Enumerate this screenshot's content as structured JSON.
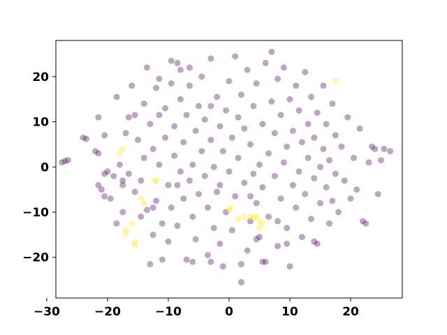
{
  "chart_data": {
    "type": "scatter",
    "title": "",
    "xlabel": "",
    "ylabel": "",
    "xlim": [
      -28.5,
      28.5
    ],
    "ylim": [
      -29,
      28
    ],
    "xticks": [
      -30,
      -20,
      -10,
      0,
      10,
      20
    ],
    "yticks": [
      -20,
      -10,
      0,
      10,
      20
    ],
    "xtick_labels": [
      "−30",
      "−20",
      "−10",
      "0",
      "10",
      "20"
    ],
    "ytick_labels": [
      "−20",
      "−10",
      "0",
      "10",
      "20"
    ],
    "grid": false,
    "legend": "none",
    "colors": {
      "class0": "#440154",
      "class1": "#fde725"
    },
    "marker_alpha": 0.35,
    "series": [
      {
        "points": [
          [
            -27.5,
            1.0
          ],
          [
            -27.0,
            1.3
          ],
          [
            -26.5,
            1.5
          ],
          [
            -24.0,
            6.5
          ],
          [
            -23.5,
            6.2
          ],
          [
            -22.0,
            3.5
          ],
          [
            -21.5,
            3.0
          ],
          [
            -21.5,
            11.0
          ],
          [
            -20.5,
            7.0
          ],
          [
            -21.5,
            -4.0
          ],
          [
            -21.0,
            -5.0
          ],
          [
            -20.5,
            -6.5
          ],
          [
            -20.5,
            -1.5
          ],
          [
            -20.0,
            -1.0
          ],
          [
            -19.5,
            -7.0
          ],
          [
            -18.5,
            -12.5
          ],
          [
            -18.5,
            15.5
          ],
          [
            -18.0,
            0.5
          ],
          [
            -17.5,
            -10.0
          ],
          [
            -17.5,
            -4.0
          ],
          [
            -17.0,
            7.5
          ],
          [
            -16.5,
            11.0
          ],
          [
            -16.5,
            -1.5
          ],
          [
            -16.0,
            18.0
          ],
          [
            -15.5,
            11.5
          ],
          [
            -15.5,
            -5.5
          ],
          [
            -15.0,
            6.0
          ],
          [
            -14.5,
            -11.0
          ],
          [
            -14.5,
            -3.0
          ],
          [
            -14.0,
            14.0
          ],
          [
            -14.0,
            2.0
          ],
          [
            -13.5,
            22.0
          ],
          [
            -13.5,
            -9.5
          ],
          [
            -13.0,
            9.5
          ],
          [
            -13.0,
            -21.5
          ],
          [
            -12.5,
            -15.0
          ],
          [
            -12.5,
            4.0
          ],
          [
            -12.0,
            17.5
          ],
          [
            -12.0,
            -7.5
          ],
          [
            -11.5,
            11.5
          ],
          [
            -11.5,
            0.5
          ],
          [
            -11.0,
            -12.5
          ],
          [
            -11.0,
            -20.5
          ],
          [
            -10.5,
            13.0
          ],
          [
            -10.5,
            6.5
          ],
          [
            -10.0,
            -4.0
          ],
          [
            -10.0,
            -16.5
          ],
          [
            -9.5,
            23.5
          ],
          [
            -9.5,
            18.5
          ],
          [
            -9.5,
            -9.0
          ],
          [
            -9.0,
            2.5
          ],
          [
            -9.0,
            9.0
          ],
          [
            -8.5,
            23.0
          ],
          [
            -8.5,
            -13.0
          ],
          [
            -8.0,
            -1.0
          ],
          [
            -8.0,
            15.0
          ],
          [
            -7.5,
            -7.0
          ],
          [
            -7.5,
            5.5
          ],
          [
            -7.0,
            11.5
          ],
          [
            -7.0,
            -20.5
          ],
          [
            -6.5,
            -3.0
          ],
          [
            -6.5,
            18.0
          ],
          [
            -6.0,
            0.5
          ],
          [
            -6.0,
            -11.0
          ],
          [
            -5.5,
            8.0
          ],
          [
            -5.5,
            -16.0
          ],
          [
            -5.0,
            13.5
          ],
          [
            -5.0,
            -6.0
          ],
          [
            -4.5,
            3.5
          ],
          [
            -4.5,
            20.0
          ],
          [
            -4.0,
            -2.0
          ],
          [
            -4.0,
            10.5
          ],
          [
            -3.5,
            -19.5
          ],
          [
            -3.5,
            -9.0
          ],
          [
            -3.0,
            6.0
          ],
          [
            -3.0,
            24.0
          ],
          [
            -2.5,
            -13.5
          ],
          [
            -2.5,
            0.0
          ],
          [
            -2.0,
            15.5
          ],
          [
            -2.0,
            -5.5
          ],
          [
            -1.5,
            9.0
          ],
          [
            -1.5,
            -17.0
          ],
          [
            -1.0,
            3.5
          ],
          [
            -1.0,
            -22.0
          ],
          [
            -0.5,
            12.5
          ],
          [
            -0.5,
            -10.0
          ],
          [
            0.0,
            -1.0
          ],
          [
            0.0,
            19.0
          ],
          [
            0.5,
            6.5
          ],
          [
            0.5,
            -14.0
          ],
          [
            1.0,
            24.5
          ],
          [
            1.0,
            -6.5
          ],
          [
            1.5,
            11.0
          ],
          [
            1.5,
            2.0
          ],
          [
            2.0,
            -25.5
          ],
          [
            2.0,
            16.0
          ],
          [
            2.5,
            -3.5
          ],
          [
            2.5,
            8.5
          ],
          [
            3.0,
            -18.5
          ],
          [
            3.0,
            21.5
          ],
          [
            3.5,
            -12.0
          ],
          [
            3.5,
            5.0
          ],
          [
            4.0,
            -1.5
          ],
          [
            4.0,
            13.5
          ],
          [
            4.5,
            -8.0
          ],
          [
            4.5,
            18.5
          ],
          [
            5.0,
            0.5
          ],
          [
            5.0,
            -15.5
          ],
          [
            5.5,
            9.5
          ],
          [
            5.5,
            -4.5
          ],
          [
            6.0,
            23.0
          ],
          [
            6.0,
            -21.0
          ],
          [
            6.5,
            3.0
          ],
          [
            6.5,
            -11.0
          ],
          [
            7.0,
            14.5
          ],
          [
            7.0,
            25.5
          ],
          [
            7.5,
            -2.0
          ],
          [
            7.5,
            7.5
          ],
          [
            8.0,
            -17.5
          ],
          [
            8.0,
            19.5
          ],
          [
            8.5,
            -7.0
          ],
          [
            8.5,
            11.5
          ],
          [
            9.0,
            1.0
          ],
          [
            9.0,
            22.0
          ],
          [
            9.5,
            -13.5
          ],
          [
            9.5,
            4.5
          ],
          [
            10.0,
            -22.0
          ],
          [
            10.0,
            15.0
          ],
          [
            10.5,
            -4.0
          ],
          [
            10.5,
            8.0
          ],
          [
            11.0,
            -9.0
          ],
          [
            11.0,
            18.0
          ],
          [
            11.5,
            -1.0
          ],
          [
            11.5,
            12.5
          ],
          [
            12.0,
            5.5
          ],
          [
            12.0,
            -15.5
          ],
          [
            12.5,
            -6.0
          ],
          [
            12.5,
            21.0
          ],
          [
            13.0,
            2.0
          ],
          [
            13.0,
            9.5
          ],
          [
            13.5,
            -11.5
          ],
          [
            13.5,
            15.5
          ],
          [
            14.0,
            -2.5
          ],
          [
            14.0,
            6.5
          ],
          [
            14.5,
            -17.0
          ],
          [
            14.5,
            12.0
          ],
          [
            15.0,
            0.0
          ],
          [
            15.0,
            -8.0
          ],
          [
            15.5,
            18.0
          ],
          [
            15.5,
            4.0
          ],
          [
            16.0,
            -4.5
          ],
          [
            16.0,
            9.5
          ],
          [
            16.5,
            -12.5
          ],
          [
            16.5,
            1.5
          ],
          [
            17.0,
            14.0
          ],
          [
            17.0,
            -7.5
          ],
          [
            17.5,
            -1.5
          ],
          [
            17.5,
            7.0
          ],
          [
            18.0,
            -10.0
          ],
          [
            18.5,
            4.5
          ],
          [
            19.0,
            -3.0
          ],
          [
            19.5,
            11.0
          ],
          [
            20.0,
            -7.0
          ],
          [
            20.5,
            2.0
          ],
          [
            21.0,
            -5.0
          ],
          [
            21.5,
            8.5
          ],
          [
            22.0,
            -12.0
          ],
          [
            22.5,
            -12.5
          ],
          [
            23.0,
            1.0
          ],
          [
            23.5,
            4.5
          ],
          [
            24.0,
            4.0
          ],
          [
            24.5,
            -6.0
          ],
          [
            25.0,
            1.5
          ],
          [
            25.5,
            4.0
          ],
          [
            26.5,
            3.5
          ],
          [
            -17.5,
            -3.0
          ],
          [
            -12.5,
            -9.0
          ],
          [
            -6.0,
            -21.0
          ],
          [
            -3.0,
            -21.0
          ],
          [
            2.0,
            -21.5
          ],
          [
            5.5,
            -21.0
          ],
          [
            8.0,
            -12.0
          ],
          [
            -6.5,
            22.0
          ],
          [
            -3.0,
            13.5
          ],
          [
            -11.5,
            19.5
          ],
          [
            -8.0,
            21.5
          ],
          [
            4.5,
            -16.0
          ],
          [
            14.0,
            -16.5
          ],
          [
            -19.0,
            -2.0
          ],
          [
            -8.5,
            -4.0
          ],
          [
            -1.5,
            -4.0
          ],
          [
            3.5,
            -6.5
          ],
          [
            9.5,
            -17.0
          ]
        ]
      },
      {
        "points": [
          [
            -17.5,
            4.0
          ],
          [
            -18.0,
            3.0
          ],
          [
            -17.0,
            -14.0
          ],
          [
            -17.0,
            -14.8
          ],
          [
            -16.0,
            -12.5
          ],
          [
            -15.5,
            -16.5
          ],
          [
            -15.5,
            -17.2
          ],
          [
            -14.5,
            -7.0
          ],
          [
            -14.0,
            -8.0
          ],
          [
            -12.0,
            -3.0
          ],
          [
            -12.2,
            -3.1
          ],
          [
            0.0,
            -9.5
          ],
          [
            0.2,
            -9.0
          ],
          [
            1.5,
            -11.5
          ],
          [
            2.5,
            -11.0
          ],
          [
            3.5,
            -11.0
          ],
          [
            4.0,
            -11.2
          ],
          [
            4.5,
            -11.0
          ],
          [
            5.0,
            -12.0
          ],
          [
            5.5,
            -12.5
          ],
          [
            5.0,
            -13.5
          ],
          [
            17.5,
            19.0
          ]
        ]
      }
    ]
  }
}
